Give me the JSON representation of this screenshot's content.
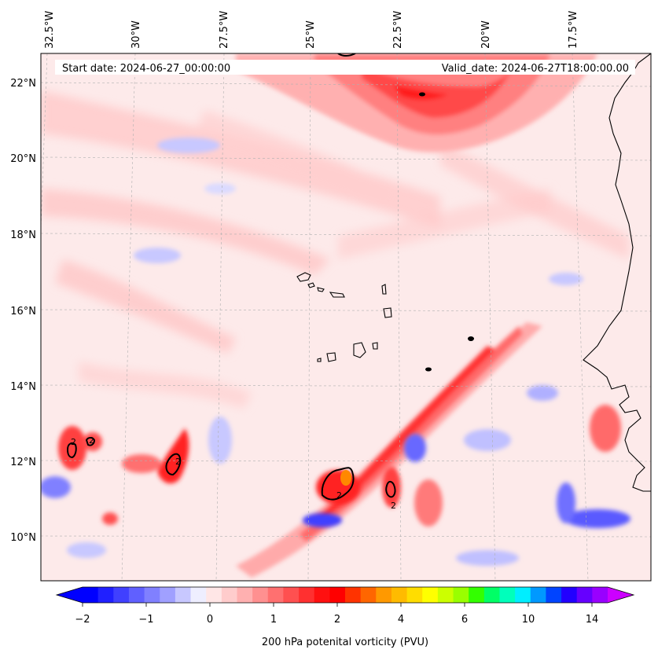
{
  "header": {
    "start_date": "Start date: 2024-06-27_00:00:00",
    "valid_date": "Valid_date: 2024-06-27T18:00:00.00"
  },
  "map": {
    "lon_labels": [
      "32.5°W",
      "30°W",
      "27.5°W",
      "25°W",
      "22.5°W",
      "20°W",
      "17.5°W"
    ],
    "lat_labels": [
      "22°N",
      "20°N",
      "18°N",
      "16°N",
      "14°N",
      "12°N",
      "10°N"
    ],
    "contour_labels": [
      "2",
      "2",
      "2",
      "2",
      "2"
    ],
    "colors": {
      "background_pale": "#fde6e6",
      "light_red": "#ffb3b3",
      "red": "#ff2a2a",
      "dark_red": "#ff0000",
      "light_blue": "#d6d6ff",
      "blue": "#4b4bff",
      "orange": "#ff8800",
      "coast": "#000000"
    }
  },
  "colorbar": {
    "tick_labels": [
      "−2",
      "−1",
      "0",
      "1",
      "2",
      "4",
      "6",
      "10",
      "14"
    ],
    "title": "200 hPa potenital vorticity (PVU)",
    "colors": [
      "#0000ff",
      "#2020ff",
      "#4040ff",
      "#6060ff",
      "#8080ff",
      "#a0a0ff",
      "#c8c8ff",
      "#eeeeff",
      "#ffe6e6",
      "#ffcccc",
      "#ffb0b0",
      "#ff9090",
      "#ff7070",
      "#ff5050",
      "#ff3030",
      "#ff1010",
      "#ff0000",
      "#ff3300",
      "#ff6600",
      "#ff9900",
      "#ffbb00",
      "#ffdd00",
      "#ffff00",
      "#ccff00",
      "#99ff00",
      "#33ff00",
      "#00ff66",
      "#00ffbb",
      "#00eeff",
      "#0099ff",
      "#0044ff",
      "#2200ff",
      "#6600ff",
      "#9900ff"
    ],
    "under_color": "#0000ff",
    "over_color": "#cc00ff"
  }
}
